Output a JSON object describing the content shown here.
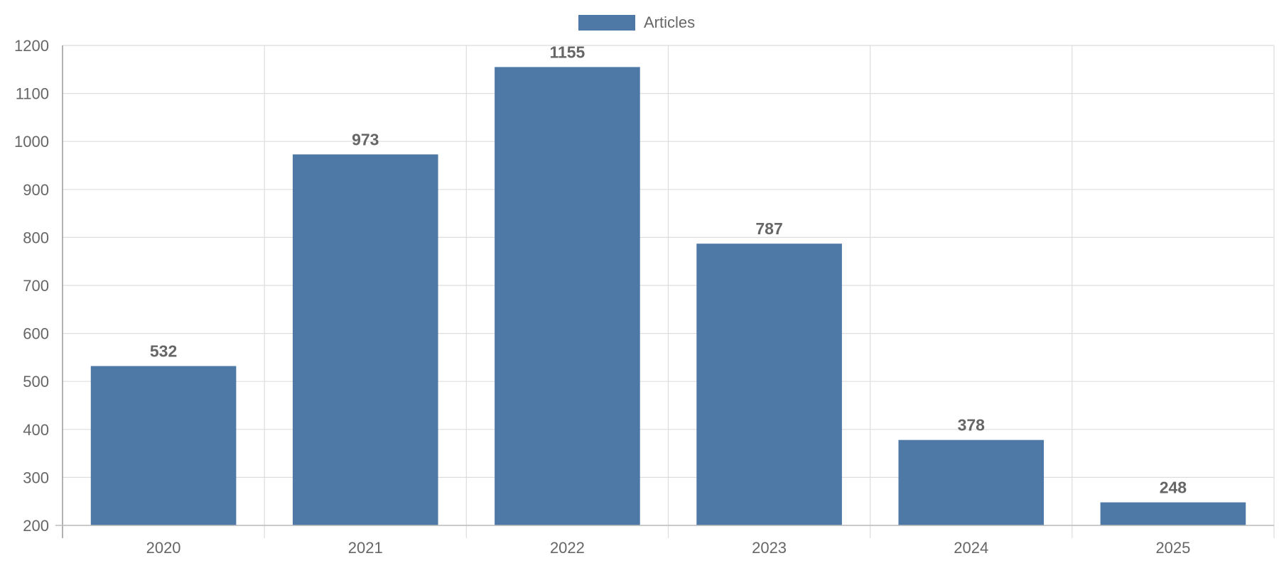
{
  "chart_data": {
    "type": "bar",
    "categories": [
      "2020",
      "2021",
      "2022",
      "2023",
      "2024",
      "2025"
    ],
    "series": [
      {
        "name": "Articles",
        "values": [
          532,
          973,
          1155,
          787,
          378,
          248
        ],
        "color": "#4e79a7"
      }
    ],
    "title": "",
    "xlabel": "",
    "ylabel": "",
    "ylim": [
      200,
      1200
    ],
    "yticks": [
      200,
      300,
      400,
      500,
      600,
      700,
      800,
      900,
      1000,
      1100,
      1200
    ],
    "grid": true,
    "legend_position": "top-center",
    "data_labels": true
  },
  "colors": {
    "grid": "#dddddd",
    "axis": "#999999",
    "text": "#666666"
  }
}
